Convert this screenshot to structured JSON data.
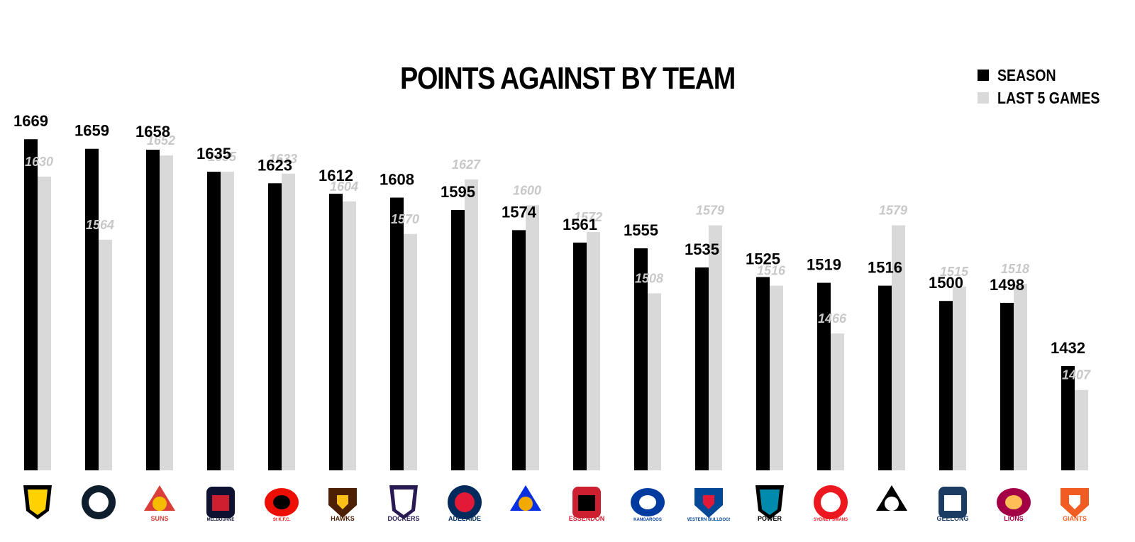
{
  "chart_data": {
    "type": "bar",
    "title": "POINTS AGAINST BY TEAM",
    "categories": [
      "Richmond",
      "Carlton",
      "Gold Coast",
      "Melbourne",
      "St Kilda",
      "Hawthorn",
      "Fremantle",
      "Adelaide",
      "West Coast",
      "Essendon",
      "North Melbourne",
      "Western Bulldogs",
      "Port Adelaide",
      "Sydney",
      "Collingwood",
      "Geelong",
      "Brisbane",
      "GWS"
    ],
    "series": [
      {
        "name": "SEASON",
        "color": "#000000",
        "values": [
          1669,
          1659,
          1658,
          1635,
          1623,
          1612,
          1608,
          1595,
          1574,
          1561,
          1555,
          1535,
          1525,
          1519,
          1516,
          1500,
          1498,
          1432
        ]
      },
      {
        "name": "LAST 5 GAMES",
        "color": "#d9d9d9",
        "values": [
          1630,
          1564,
          1652,
          1635,
          1633,
          1604,
          1570,
          1627,
          1600,
          1572,
          1508,
          1579,
          1516,
          1466,
          1579,
          1515,
          1518,
          1407
        ]
      }
    ],
    "value_labels": {
      "season": [
        "1669",
        "1659",
        "1658",
        "1635",
        "1623",
        "1612",
        "1608",
        "1595",
        "1574",
        "1561",
        "1555",
        "1535",
        "1525",
        "1519",
        "1516",
        "1500",
        "1498",
        "1432"
      ],
      "last5": [
        "1630",
        "1564",
        "1652",
        "1635",
        "1633",
        "1604",
        "1570",
        "1627",
        "1600",
        "1572",
        "1508",
        "1579",
        "1516",
        "1466",
        "1579",
        "1515",
        "1518",
        "1407"
      ]
    },
    "ylim": [
      1323,
      1700
    ],
    "xlabel": "",
    "ylabel": "",
    "grid": false,
    "legend": "top-right"
  },
  "legend": {
    "season": {
      "label": "SEASON",
      "color": "#000000"
    },
    "last5": {
      "label": "LAST 5 GAMES",
      "color": "#d9d9d9"
    }
  },
  "logos": [
    {
      "icon": "richmond-tigers-logo-icon",
      "text": "",
      "colors": [
        "#000000",
        "#ffd200"
      ]
    },
    {
      "icon": "carlton-blues-logo-icon",
      "text": "",
      "colors": [
        "#0e1e2d",
        "#ffffff"
      ]
    },
    {
      "icon": "gold-coast-suns-logo-icon",
      "text": "SUNS",
      "colors": [
        "#d93e39",
        "#f6bd00"
      ]
    },
    {
      "icon": "melbourne-demons-logo-icon",
      "text": "MELBOURNE",
      "colors": [
        "#0f1131",
        "#cc2031"
      ]
    },
    {
      "icon": "st-kilda-saints-logo-icon",
      "text": "St K.F.C.",
      "colors": [
        "#ed0f05",
        "#000000"
      ]
    },
    {
      "icon": "hawthorn-hawks-logo-icon",
      "text": "HAWKS",
      "colors": [
        "#4d2004",
        "#fbbf15"
      ]
    },
    {
      "icon": "fremantle-dockers-logo-icon",
      "text": "DOCKERS",
      "colors": [
        "#2a1a54",
        "#ffffff"
      ]
    },
    {
      "icon": "adelaide-crows-logo-icon",
      "text": "ADELAIDE",
      "colors": [
        "#002b5c",
        "#e21937"
      ]
    },
    {
      "icon": "west-coast-eagles-logo-icon",
      "text": "",
      "colors": [
        "#062ee2",
        "#f2a900"
      ]
    },
    {
      "icon": "essendon-bombers-logo-icon",
      "text": "ESSENDON",
      "colors": [
        "#cc2031",
        "#000000"
      ]
    },
    {
      "icon": "north-melbourne-kangaroos-logo-icon",
      "text": "KANGAROOS",
      "colors": [
        "#013b9f",
        "#ffffff"
      ]
    },
    {
      "icon": "western-bulldogs-logo-icon",
      "text": "WESTERN BULLDOGS",
      "colors": [
        "#014896",
        "#e21937"
      ]
    },
    {
      "icon": "port-adelaide-power-logo-icon",
      "text": "POWER",
      "colors": [
        "#000000",
        "#008aab"
      ]
    },
    {
      "icon": "sydney-swans-logo-icon",
      "text": "SYDNEY SWANS",
      "colors": [
        "#ed171f",
        "#ffffff"
      ]
    },
    {
      "icon": "collingwood-magpies-logo-icon",
      "text": "",
      "colors": [
        "#000000",
        "#ffffff"
      ]
    },
    {
      "icon": "geelong-cats-logo-icon",
      "text": "GEELONG",
      "colors": [
        "#1c3c63",
        "#ffffff"
      ]
    },
    {
      "icon": "brisbane-lions-logo-icon",
      "text": "LIONS",
      "colors": [
        "#a30046",
        "#fdbe57"
      ]
    },
    {
      "icon": "gws-giants-logo-icon",
      "text": "GIANTS",
      "colors": [
        "#f15c22",
        "#ffffff"
      ]
    }
  ]
}
